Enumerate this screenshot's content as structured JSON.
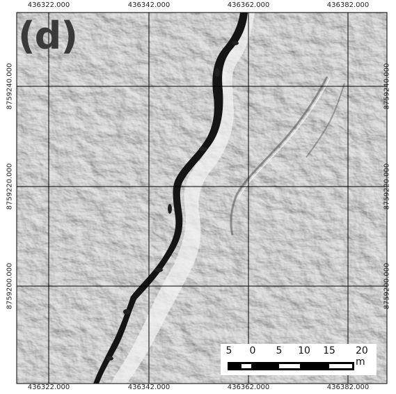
{
  "panel_label": "(d)",
  "x_labels": [
    "436322.000",
    "436342.000",
    "436362.000",
    "436382.000"
  ],
  "y_labels": [
    "8759240.000",
    "8759220.000",
    "8759200.000"
  ],
  "scale_bar": {
    "labels": [
      "5",
      "0",
      "5",
      "10",
      "15",
      "20 m"
    ],
    "segments": [
      "black",
      "white",
      "black",
      "white",
      "black",
      "white",
      "black"
    ]
  },
  "colors": {
    "relief_base": "#b9b9b9",
    "shadow": "#151515",
    "highlight": "#f4f4f4",
    "grid": "#000000"
  }
}
